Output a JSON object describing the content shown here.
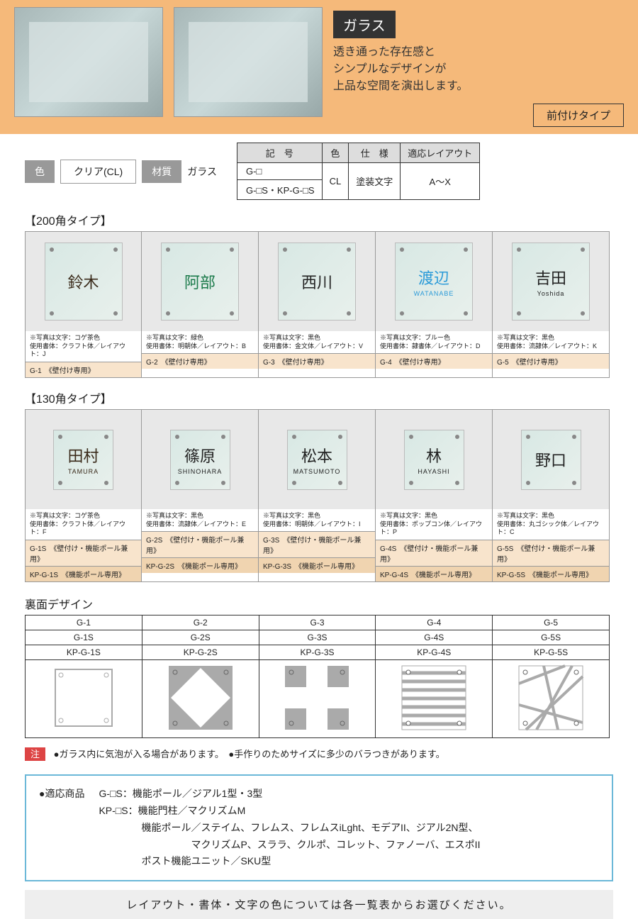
{
  "header": {
    "badge": "ガラス",
    "desc_line1": "透き通った存在感と",
    "desc_line2": "シンプルなデザインが",
    "desc_line3": "上品な空間を演出します。",
    "type": "前付けタイプ"
  },
  "meta": {
    "color_label": "色",
    "color_value": "クリア(CL)",
    "material_label": "材質",
    "material_value": "ガラス"
  },
  "spec": {
    "h1": "記　号",
    "h2": "色",
    "h3": "仕　様",
    "h4": "適応レイアウト",
    "r1c1": "G-□",
    "r2c1": "G-□S・KP-G-□S",
    "c2": "CL",
    "c3": "塗装文字",
    "c4": "A～X"
  },
  "section200": "【200角タイプ】",
  "products200": [
    {
      "name": "鈴木",
      "sub": "",
      "color": "#3a2a1a",
      "note1": "※写真は文字：コゲ茶色",
      "note2": "使用書体：クラフト体／レイアウト：J",
      "code": "G-1　《壁付け専用》"
    },
    {
      "name": "阿部",
      "sub": "",
      "color": "#1a7a4a",
      "note1": "※写真は文字：緑色",
      "note2": "使用書体：明朝体／レイアウト：B",
      "code": "G-2　《壁付け専用》"
    },
    {
      "name": "西川",
      "sub": "",
      "color": "#222",
      "note1": "※写真は文字：黒色",
      "note2": "使用書体：金文体／レイアウト：V",
      "code": "G-3　《壁付け専用》"
    },
    {
      "name": "渡辺",
      "sub": "WATANABE",
      "color": "#2a9ad8",
      "note1": "※写真は文字：ブルー色",
      "note2": "使用書体：隷書体／レイアウト：D",
      "code": "G-4　《壁付け専用》"
    },
    {
      "name": "吉田",
      "sub": "Yoshida",
      "color": "#222",
      "note1": "※写真は文字：黒色",
      "note2": "使用書体：流隷体／レイアウト：K",
      "code": "G-5　《壁付け専用》"
    }
  ],
  "section130": "【130角タイプ】",
  "products130": [
    {
      "name": "田村",
      "sub": "TAMURA",
      "color": "#3a2a1a",
      "note1": "※写真は文字：コゲ茶色",
      "note2": "使用書体：クラフト体／レイアウト：F",
      "code1": "G-1S　《壁付け・機能ポール兼用》",
      "code2": "KP-G-1S　《機能ポール専用》"
    },
    {
      "name": "篠原",
      "sub": "SHINOHARA",
      "color": "#222",
      "note1": "※写真は文字：黒色",
      "note2": "使用書体：流隷体／レイアウト：E",
      "code1": "G-2S　《壁付け・機能ポール兼用》",
      "code2": "KP-G-2S　《機能ポール専用》"
    },
    {
      "name": "松本",
      "sub": "MATSUMOTO",
      "color": "#222",
      "note1": "※写真は文字：黒色",
      "note2": "使用書体：明朝体／レイアウト：I",
      "code1": "G-3S　《壁付け・機能ポール兼用》",
      "code2": "KP-G-3S　《機能ポール専用》"
    },
    {
      "name": "林",
      "sub": "HAYASHI",
      "color": "#222",
      "note1": "※写真は文字：黒色",
      "note2": "使用書体：ポップコン体／レイアウト：P",
      "code1": "G-4S　《壁付け・機能ポール兼用》",
      "code2": "KP-G-4S　《機能ポール専用》"
    },
    {
      "name": "野口",
      "sub": "",
      "color": "#222",
      "note1": "※写真は文字：黒色",
      "note2": "使用書体：丸ゴシック体／レイアウト：C",
      "code1": "G-5S　《壁付け・機能ポール兼用》",
      "code2": "KP-G-5S　《機能ポール専用》"
    }
  ],
  "back": {
    "title": "裏面デザイン",
    "rows": [
      [
        "G-1",
        "G-2",
        "G-3",
        "G-4",
        "G-5"
      ],
      [
        "G-1S",
        "G-2S",
        "G-3S",
        "G-4S",
        "G-5S"
      ],
      [
        "KP-G-1S",
        "KP-G-2S",
        "KP-G-3S",
        "KP-G-4S",
        "KP-G-5S"
      ]
    ]
  },
  "warning": {
    "badge": "注",
    "text": "●ガラス内に気泡が入る場合があります。　●手作りのためサイズに多少のバラつきがあります。"
  },
  "compat": {
    "label": "●適応商品",
    "l1": "G-□S：機能ポール／ジアル1型・3型",
    "l2": "KP-□S：機能門柱／マクリズムM",
    "l3": "機能ポール／ステイム、フレムス、フレムスiLght、モデアII、ジアル2N型、",
    "l4": "マクリズムP、スララ、クルポ、コレット、ファノーバ、エスポII",
    "l5": "ポスト機能ユニット／SKU型"
  },
  "footer": "レイアウト・書体・文字の色については各一覧表からお選びください。"
}
